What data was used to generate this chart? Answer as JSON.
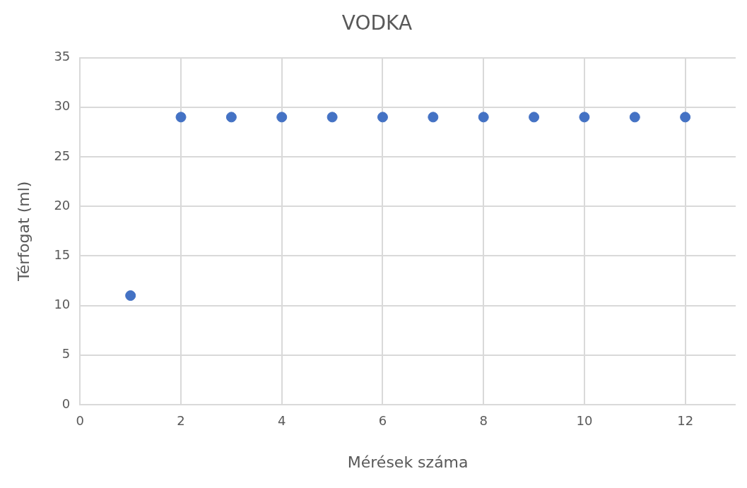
{
  "chart_data": {
    "type": "scatter",
    "title": "VODKA",
    "xlabel": "Mérések száma",
    "ylabel": "Térfogat (ml)",
    "x": [
      1,
      2,
      3,
      4,
      5,
      6,
      7,
      8,
      9,
      10,
      11,
      12
    ],
    "series": [
      {
        "color": "#4472c4",
        "values": [
          11,
          29,
          29,
          29,
          29,
          29,
          29,
          29,
          29,
          29,
          29,
          29
        ]
      }
    ],
    "xlim": [
      0,
      13
    ],
    "xticks": [
      0,
      2,
      4,
      6,
      8,
      10,
      12
    ],
    "ylim": [
      0,
      35
    ],
    "yticks": [
      0,
      5,
      10,
      15,
      20,
      25,
      30,
      35
    ],
    "grid": true,
    "legend": false,
    "marker": "circle"
  }
}
